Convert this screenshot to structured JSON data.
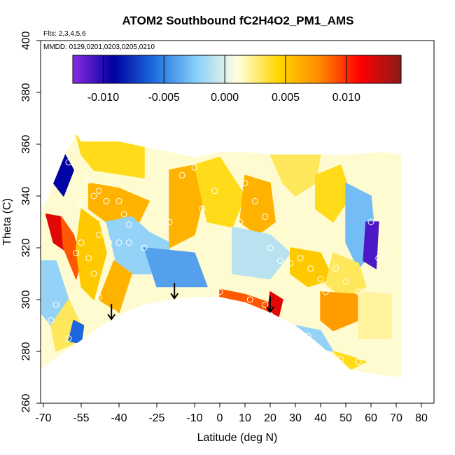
{
  "chart_data": {
    "type": "heatmap",
    "title": "ATOM2 Southbound fC2H4O2_PM1_AMS",
    "subtitle_flights": "Flts: 2,3,4,5,6",
    "subtitle_dates": "MMDD: 0129,0201,0203,0205,0210",
    "xlabel": "Latitude (deg N)",
    "ylabel": "Theta (C)",
    "xlim": [
      -70,
      80
    ],
    "ylim": [
      260,
      400
    ],
    "x_ticks": [
      -70,
      -55,
      -40,
      -25,
      -10,
      0,
      10,
      20,
      30,
      40,
      50,
      60,
      70,
      80
    ],
    "y_ticks": [
      260,
      280,
      300,
      320,
      340,
      360,
      380,
      400
    ],
    "colorbar": {
      "range": [
        -0.0125,
        0.0145
      ],
      "ticks": [
        -0.01,
        -0.005,
        0.0,
        0.005,
        0.01
      ],
      "tick_labels": [
        "-0.010",
        "-0.005",
        "0.000",
        "0.005",
        "0.010"
      ],
      "colors": [
        "#8a2be2",
        "#0000a0",
        "#1e6fe0",
        "#87cefa",
        "#ffffe0",
        "#ffd700",
        "#ff8c00",
        "#ff0000",
        "#8b1a1a"
      ]
    },
    "tropopause_bottom": [
      [
        -71,
        273
      ],
      [
        -67,
        276
      ],
      [
        -60,
        281
      ],
      [
        -54,
        285
      ],
      [
        -45,
        291
      ],
      [
        -38,
        295
      ],
      [
        -30,
        298
      ],
      [
        -20,
        300
      ],
      [
        -10,
        301
      ],
      [
        0,
        301
      ],
      [
        10,
        299
      ],
      [
        20,
        295
      ],
      [
        30,
        290
      ],
      [
        38,
        284
      ],
      [
        45,
        278
      ],
      [
        52,
        273
      ],
      [
        62,
        271
      ],
      [
        72,
        270
      ]
    ],
    "top_boundary": [
      [
        -71,
        333
      ],
      [
        -66,
        345
      ],
      [
        -61,
        357
      ],
      [
        -57,
        364
      ],
      [
        -55,
        361
      ],
      [
        -40,
        361
      ],
      [
        -30,
        359
      ],
      [
        -20,
        357
      ],
      [
        -10,
        355
      ],
      [
        0,
        357
      ],
      [
        10,
        357
      ],
      [
        20,
        356
      ],
      [
        30,
        356
      ],
      [
        40,
        356
      ],
      [
        50,
        356
      ],
      [
        65,
        357
      ],
      [
        72,
        356
      ]
    ],
    "arrows_latitude": [
      -43,
      -18,
      20
    ],
    "regions": [
      {
        "poly": [
          [
            -66,
            345
          ],
          [
            -62,
            357
          ],
          [
            -58,
            350
          ],
          [
            -62,
            340
          ]
        ],
        "value": -0.009
      },
      {
        "poly": [
          [
            -69,
            333
          ],
          [
            -63,
            332
          ],
          [
            -58,
            325
          ],
          [
            -60,
            318
          ],
          [
            -66,
            322
          ]
        ],
        "value": 0.012
      },
      {
        "poly": [
          [
            -63,
            332
          ],
          [
            -58,
            325
          ],
          [
            -55,
            315
          ],
          [
            -57,
            308
          ],
          [
            -62,
            320
          ]
        ],
        "value": 0.009
      },
      {
        "poly": [
          [
            -57,
            364
          ],
          [
            -30,
            359
          ],
          [
            -30,
            347
          ],
          [
            -50,
            350
          ],
          [
            -55,
            356
          ]
        ],
        "value": 0.004
      },
      {
        "poly": [
          [
            -52,
            345
          ],
          [
            -40,
            343
          ],
          [
            -28,
            338
          ],
          [
            -32,
            330
          ],
          [
            -45,
            330
          ],
          [
            -52,
            335
          ]
        ],
        "value": 0.006
      },
      {
        "poly": [
          [
            -55,
            335
          ],
          [
            -48,
            330
          ],
          [
            -45,
            318
          ],
          [
            -50,
            300
          ],
          [
            -55,
            305
          ],
          [
            -57,
            320
          ]
        ],
        "value": 0.005
      },
      {
        "poly": [
          [
            -45,
            330
          ],
          [
            -35,
            332
          ],
          [
            -28,
            326
          ],
          [
            -20,
            322
          ],
          [
            -20,
            310
          ],
          [
            -40,
            310
          ]
        ],
        "value": -0.002
      },
      {
        "poly": [
          [
            -48,
            300
          ],
          [
            -40,
            295
          ],
          [
            -35,
            310
          ],
          [
            -42,
            315
          ]
        ],
        "value": 0.006
      },
      {
        "poly": [
          [
            -71,
            315
          ],
          [
            -65,
            315
          ],
          [
            -60,
            300
          ],
          [
            -67,
            290
          ],
          [
            -71,
            295
          ]
        ],
        "value": -0.002
      },
      {
        "poly": [
          [
            -67,
            290
          ],
          [
            -60,
            300
          ],
          [
            -55,
            290
          ],
          [
            -58,
            283
          ],
          [
            -65,
            280
          ]
        ],
        "value": 0.003
      },
      {
        "poly": [
          [
            -60,
            284
          ],
          [
            -55,
            283
          ],
          [
            -54,
            290
          ],
          [
            -58,
            292
          ]
        ],
        "value": -0.006
      },
      {
        "poly": [
          [
            -20,
            350
          ],
          [
            -10,
            352
          ],
          [
            -5,
            345
          ],
          [
            -10,
            325
          ],
          [
            -20,
            320
          ]
        ],
        "value": 0.006
      },
      {
        "poly": [
          [
            -30,
            320
          ],
          [
            -10,
            318
          ],
          [
            -5,
            305
          ],
          [
            -25,
            305
          ]
        ],
        "value": -0.004
      },
      {
        "poly": [
          [
            -10,
            352
          ],
          [
            0,
            355
          ],
          [
            10,
            340
          ],
          [
            5,
            328
          ],
          [
            -5,
            330
          ]
        ],
        "value": 0.004
      },
      {
        "poly": [
          [
            10,
            348
          ],
          [
            20,
            345
          ],
          [
            22,
            330
          ],
          [
            15,
            325
          ],
          [
            8,
            330
          ]
        ],
        "value": 0.006
      },
      {
        "poly": [
          [
            20,
            356
          ],
          [
            40,
            356
          ],
          [
            38,
            345
          ],
          [
            30,
            340
          ],
          [
            25,
            345
          ]
        ],
        "value": 0.003
      },
      {
        "poly": [
          [
            38,
            348
          ],
          [
            48,
            352
          ],
          [
            52,
            340
          ],
          [
            45,
            330
          ],
          [
            38,
            335
          ]
        ],
        "value": 0.004
      },
      {
        "poly": [
          [
            50,
            345
          ],
          [
            60,
            340
          ],
          [
            62,
            320
          ],
          [
            55,
            312
          ],
          [
            50,
            322
          ]
        ],
        "value": -0.003
      },
      {
        "poly": [
          [
            58,
            330
          ],
          [
            63,
            330
          ],
          [
            62,
            312
          ],
          [
            57,
            315
          ]
        ],
        "value": -0.011
      },
      {
        "poly": [
          [
            5,
            328
          ],
          [
            20,
            325
          ],
          [
            28,
            318
          ],
          [
            20,
            308
          ],
          [
            5,
            310
          ]
        ],
        "value": -0.001
      },
      {
        "poly": [
          [
            28,
            320
          ],
          [
            40,
            318
          ],
          [
            45,
            308
          ],
          [
            35,
            305
          ],
          [
            28,
            310
          ]
        ],
        "value": 0.005
      },
      {
        "poly": [
          [
            45,
            318
          ],
          [
            55,
            314
          ],
          [
            58,
            305
          ],
          [
            50,
            300
          ],
          [
            42,
            306
          ]
        ],
        "value": 0.003
      },
      {
        "poly": [
          [
            0,
            304
          ],
          [
            10,
            302
          ],
          [
            22,
            298
          ],
          [
            20,
            293
          ],
          [
            10,
            299
          ],
          [
            0,
            301
          ]
        ],
        "value": 0.009
      },
      {
        "poly": [
          [
            20,
            303
          ],
          [
            25,
            300
          ],
          [
            23,
            292
          ],
          [
            19,
            295
          ]
        ],
        "value": 0.012
      },
      {
        "poly": [
          [
            40,
            303
          ],
          [
            55,
            302
          ],
          [
            55,
            292
          ],
          [
            45,
            288
          ],
          [
            40,
            292
          ]
        ],
        "value": 0.007
      },
      {
        "poly": [
          [
            55,
            303
          ],
          [
            68,
            302
          ],
          [
            68,
            285
          ],
          [
            55,
            285
          ]
        ],
        "value": 0.002
      },
      {
        "poly": [
          [
            30,
            290
          ],
          [
            40,
            288
          ],
          [
            45,
            280
          ],
          [
            35,
            282
          ]
        ],
        "value": -0.002
      },
      {
        "poly": [
          [
            45,
            280
          ],
          [
            52,
            278
          ],
          [
            58,
            276
          ],
          [
            52,
            273
          ]
        ],
        "value": 0.004
      }
    ],
    "points": [
      [
        -60,
        353
      ],
      [
        -58,
        343
      ],
      [
        -55,
        337
      ],
      [
        -52,
        346
      ],
      [
        -50,
        340
      ],
      [
        -48,
        342
      ],
      [
        -45,
        338
      ],
      [
        -40,
        338
      ],
      [
        -38,
        333
      ],
      [
        -36,
        329
      ],
      [
        -48,
        325
      ],
      [
        -44,
        322
      ],
      [
        -40,
        322
      ],
      [
        -36,
        322
      ],
      [
        -30,
        320
      ],
      [
        -55,
        322
      ],
      [
        -57,
        318
      ],
      [
        -52,
        316
      ],
      [
        -50,
        310
      ],
      [
        -48,
        301
      ],
      [
        -42,
        295
      ],
      [
        -38,
        292
      ],
      [
        -30,
        298
      ],
      [
        -20,
        330
      ],
      [
        -15,
        348
      ],
      [
        -10,
        351
      ],
      [
        -7,
        335
      ],
      [
        -2,
        342
      ],
      [
        3,
        325
      ],
      [
        8,
        330
      ],
      [
        10,
        345
      ],
      [
        14,
        338
      ],
      [
        18,
        332
      ],
      [
        20,
        320
      ],
      [
        24,
        315
      ],
      [
        28,
        314
      ],
      [
        32,
        316
      ],
      [
        36,
        312
      ],
      [
        40,
        308
      ],
      [
        42,
        303
      ],
      [
        46,
        312
      ],
      [
        50,
        307
      ],
      [
        55,
        303
      ],
      [
        60,
        330
      ],
      [
        63,
        316
      ],
      [
        66,
        318
      ],
      [
        0,
        303
      ],
      [
        12,
        300
      ],
      [
        18,
        298
      ],
      [
        20,
        294
      ],
      [
        22,
        292
      ],
      [
        -65,
        298
      ],
      [
        -67,
        292
      ],
      [
        -60,
        285
      ],
      [
        -56,
        282
      ],
      [
        -53,
        284
      ],
      [
        28,
        288
      ],
      [
        35,
        286
      ],
      [
        43,
        279
      ],
      [
        48,
        277
      ],
      [
        55,
        276
      ]
    ]
  }
}
